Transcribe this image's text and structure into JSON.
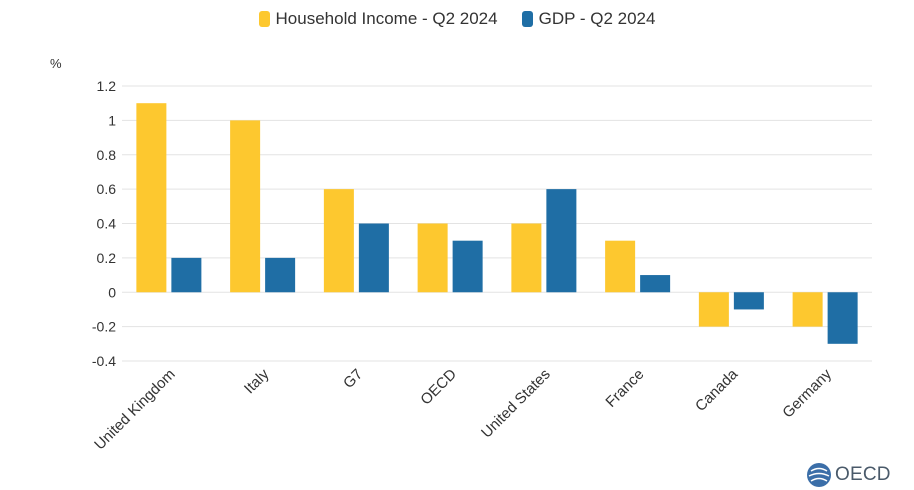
{
  "chart_data": {
    "type": "bar",
    "categories": [
      "United Kingdom",
      "Italy",
      "G7",
      "OECD",
      "United States",
      "France",
      "Canada",
      "Germany"
    ],
    "series": [
      {
        "name": "Household Income - Q2 2024",
        "color": "#fdc82f",
        "values": [
          1.1,
          1.0,
          0.6,
          0.4,
          0.4,
          0.3,
          -0.2,
          -0.2
        ]
      },
      {
        "name": "GDP - Q2 2024",
        "color": "#1f6ea5",
        "values": [
          0.2,
          0.2,
          0.4,
          0.3,
          0.6,
          0.1,
          -0.1,
          -0.3
        ]
      }
    ],
    "ylabel": "%",
    "ylim": [
      -0.4,
      1.2
    ],
    "yticks": [
      1.2,
      1,
      0.8,
      0.6,
      0.4,
      0.2,
      0,
      -0.2,
      -0.4
    ],
    "grid": true,
    "legend_position": "top-center"
  },
  "logo": {
    "text": "OECD"
  }
}
